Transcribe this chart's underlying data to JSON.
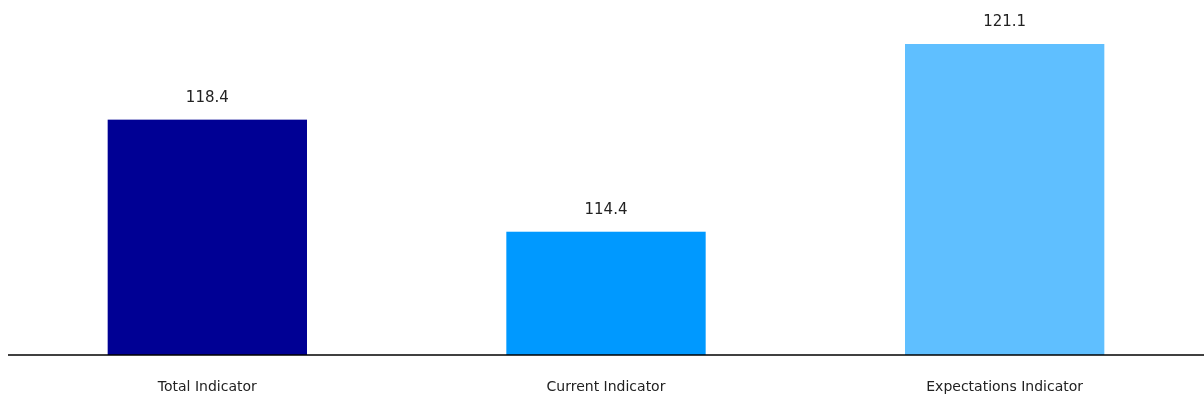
{
  "chart_data": {
    "type": "bar",
    "categories": [
      "Total Indicator",
      "Current Indicator",
      "Expectations Indicator"
    ],
    "values": [
      118.4,
      114.4,
      121.1
    ],
    "colors": [
      "#000094",
      "#0099ff",
      "#5fbfff"
    ],
    "ylim": [
      110,
      121.1
    ],
    "data_labels": true,
    "tick_labels": "x"
  }
}
